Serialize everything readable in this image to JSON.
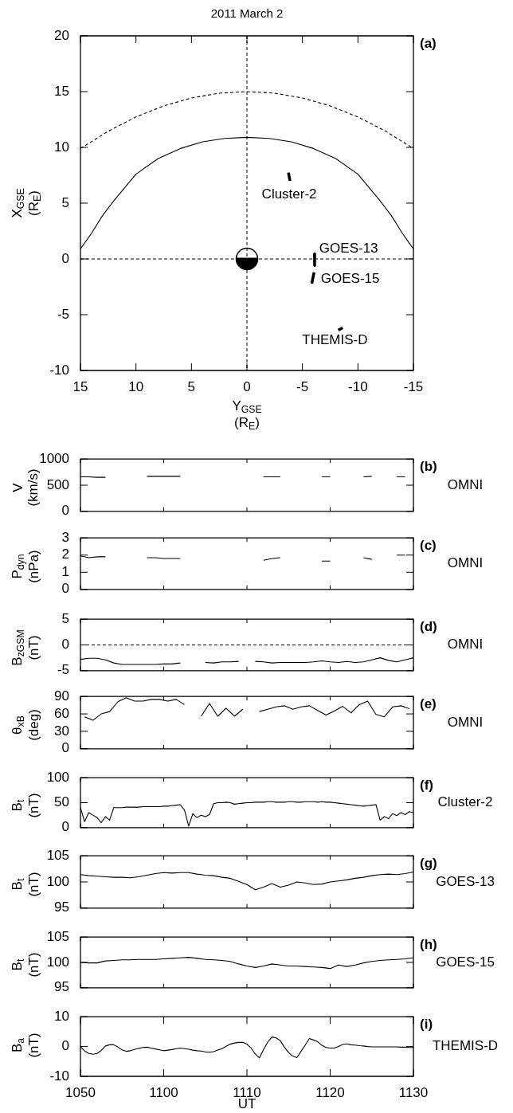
{
  "chart_data": [
    {
      "type": "line",
      "title": "2011 March 2",
      "xlabel": "Y$_{GSE}$\n(R$_{E}$)",
      "ylabel": "X$_{GSE}$\n(R$_{E}$)",
      "xlim": [
        15,
        -15
      ],
      "ylim": [
        -10,
        20
      ],
      "xticks": [
        15,
        10,
        5,
        0,
        -5,
        -10,
        -15
      ],
      "yticks": [
        -10,
        -5,
        0,
        5,
        10,
        15,
        20
      ],
      "ref_lines": [
        {
          "axis": "x",
          "value": 0,
          "line_style": "dashed"
        },
        {
          "axis": "y",
          "value": 0,
          "line_style": "dashed"
        }
      ],
      "annotations": [
        "(a)"
      ],
      "series": [
        {
          "color": "#000000",
          "line_style": "dashed",
          "x": [
            15,
            12.5,
            10,
            7.5,
            5,
            2.5,
            0,
            -2.5,
            -5,
            -7.5,
            -10,
            -12.5,
            -15
          ],
          "values": [
            9.9,
            11.45,
            12.73,
            13.72,
            14.43,
            14.86,
            15,
            14.86,
            14.43,
            13.72,
            12.73,
            11.45,
            9.9
          ]
        },
        {
          "color": "#000000",
          "x": [
            15,
            14,
            13,
            12,
            10,
            8,
            6,
            4,
            2,
            0,
            -2,
            -4,
            -6,
            -8,
            -10,
            -12,
            -13,
            -14,
            -15
          ],
          "values": [
            0.9,
            2.3,
            3.9,
            5.2,
            7.6,
            9.0,
            9.9,
            10.5,
            10.8,
            10.9,
            10.8,
            10.5,
            9.9,
            9.0,
            7.6,
            5.2,
            3.9,
            2.3,
            0.9
          ]
        },
        {
          "name": "Cluster-2",
          "color": "#000000",
          "x": [
            -3.74,
            -3.88
          ],
          "values": [
            7.74,
            7.0
          ]
        },
        {
          "name": "GOES-13",
          "color": "#000000",
          "x": [
            -6.08,
            -6.1
          ],
          "values": [
            0.47,
            -0.59
          ]
        },
        {
          "name": "GOES-15",
          "color": "#000000",
          "x": [
            -6.05,
            -5.84
          ],
          "values": [
            -1.2,
            -2.2
          ]
        },
        {
          "name": "THEMIS-D",
          "color": "#000000",
          "x": [
            -8.23,
            -8.62
          ],
          "values": [
            -6.38,
            -6.18
          ]
        }
      ]
    },
    {
      "type": "line",
      "ylabel": "V\n(km/s)",
      "tick_labels": "y",
      "xlim": [
        "2011-03-02T10:50",
        "2011-03-02T11:30"
      ],
      "ylim": [
        0,
        1000
      ],
      "yticks": [
        0,
        500,
        1000
      ],
      "xticks": [
        {
          "value": "2011-03-02T10:50",
          "label": null
        },
        {
          "value": "2011-03-02T11:00",
          "label": null
        },
        {
          "value": "2011-03-02T11:10",
          "label": null
        },
        {
          "value": "2011-03-02T11:20",
          "label": null
        },
        {
          "value": "2011-03-02T11:30",
          "label": null
        }
      ],
      "annotations": [
        "(b)",
        "OMNI"
      ],
      "color": "#000000",
      "x": [
        "2011-03-02T10:50",
        "2011-03-02T10:51",
        "2011-03-02T10:52",
        "2011-03-02T10:53",
        "2011-03-02T10:54",
        "2011-03-02T10:55",
        "2011-03-02T10:56",
        "2011-03-02T10:57",
        "2011-03-02T10:58",
        "2011-03-02T10:59",
        "2011-03-02T11:00",
        "2011-03-02T11:01",
        "2011-03-02T11:02",
        "2011-03-02T11:03",
        "2011-03-02T11:04",
        "2011-03-02T11:05",
        "2011-03-02T11:06",
        "2011-03-02T11:07",
        "2011-03-02T11:08",
        "2011-03-02T11:09",
        "2011-03-02T11:10",
        "2011-03-02T11:11",
        "2011-03-02T11:12",
        "2011-03-02T11:13",
        "2011-03-02T11:14",
        "2011-03-02T11:15",
        "2011-03-02T11:16",
        "2011-03-02T11:17",
        "2011-03-02T11:18",
        "2011-03-02T11:19",
        "2011-03-02T11:20",
        "2011-03-02T11:21",
        "2011-03-02T11:22",
        "2011-03-02T11:23",
        "2011-03-02T11:24",
        "2011-03-02T11:25",
        "2011-03-02T11:26",
        "2011-03-02T11:27",
        "2011-03-02T11:28",
        "2011-03-02T11:29"
      ],
      "values": [
        660,
        660,
        650,
        650,
        null,
        null,
        null,
        null,
        670,
        670,
        670,
        670,
        670,
        null,
        null,
        null,
        null,
        null,
        null,
        null,
        null,
        null,
        660,
        660,
        660,
        null,
        null,
        null,
        null,
        660,
        660,
        null,
        null,
        null,
        660,
        670,
        null,
        null,
        660,
        660
      ]
    },
    {
      "type": "line",
      "ylabel": "P$_{dyn}$\n(nPa)",
      "tick_labels": "y",
      "xlim": [
        "2011-03-02T10:50",
        "2011-03-02T11:30"
      ],
      "ylim": [
        0,
        3
      ],
      "yticks": [
        0,
        1,
        2,
        3
      ],
      "xticks": [
        {
          "value": "2011-03-02T10:50",
          "label": null
        },
        {
          "value": "2011-03-02T11:00",
          "label": null
        },
        {
          "value": "2011-03-02T11:10",
          "label": null
        },
        {
          "value": "2011-03-02T11:20",
          "label": null
        },
        {
          "value": "2011-03-02T11:30",
          "label": null
        }
      ],
      "annotations": [
        "(c)",
        "OMNI"
      ],
      "color": "#000000",
      "x": [
        "2011-03-02T10:50",
        "2011-03-02T10:51",
        "2011-03-02T10:52",
        "2011-03-02T10:53",
        "2011-03-02T10:54",
        "2011-03-02T10:55",
        "2011-03-02T10:56",
        "2011-03-02T10:57",
        "2011-03-02T10:58",
        "2011-03-02T10:59",
        "2011-03-02T11:00",
        "2011-03-02T11:01",
        "2011-03-02T11:02",
        "2011-03-02T11:03",
        "2011-03-02T11:04",
        "2011-03-02T11:05",
        "2011-03-02T11:06",
        "2011-03-02T11:07",
        "2011-03-02T11:08",
        "2011-03-02T11:09",
        "2011-03-02T11:10",
        "2011-03-02T11:11",
        "2011-03-02T11:12",
        "2011-03-02T11:13",
        "2011-03-02T11:14",
        "2011-03-02T11:15",
        "2011-03-02T11:16",
        "2011-03-02T11:17",
        "2011-03-02T11:18",
        "2011-03-02T11:19",
        "2011-03-02T11:20",
        "2011-03-02T11:21",
        "2011-03-02T11:22",
        "2011-03-02T11:23",
        "2011-03-02T11:24",
        "2011-03-02T11:25",
        "2011-03-02T11:26",
        "2011-03-02T11:27",
        "2011-03-02T11:28",
        "2011-03-02T11:29"
      ],
      "values": [
        1.95,
        1.85,
        1.9,
        1.9,
        null,
        null,
        null,
        null,
        1.85,
        1.85,
        1.8,
        1.8,
        1.8,
        null,
        null,
        null,
        null,
        null,
        null,
        null,
        null,
        null,
        1.7,
        1.8,
        1.85,
        null,
        null,
        null,
        null,
        1.65,
        1.65,
        null,
        null,
        null,
        1.85,
        1.75,
        null,
        null,
        2.0,
        2.0
      ]
    },
    {
      "type": "line",
      "ylabel": "B$_{zGSM}$\n(nT)",
      "tick_labels": "y",
      "xlim": [
        "2011-03-02T10:50",
        "2011-03-02T11:30"
      ],
      "ylim": [
        -5,
        5
      ],
      "yticks": [
        -5,
        0,
        5
      ],
      "xticks": [
        {
          "value": "2011-03-02T10:50",
          "label": null
        },
        {
          "value": "2011-03-02T11:00",
          "label": null
        },
        {
          "value": "2011-03-02T11:10",
          "label": null
        },
        {
          "value": "2011-03-02T11:20",
          "label": null
        },
        {
          "value": "2011-03-02T11:30",
          "label": null
        }
      ],
      "ref_lines": [
        {
          "axis": "y",
          "value": 0,
          "line_style": "dashed"
        }
      ],
      "annotations": [
        "(d)",
        "OMNI"
      ],
      "color": "#000000",
      "x": [
        "2011-03-02T10:50",
        "2011-03-02T10:51",
        "2011-03-02T10:52",
        "2011-03-02T10:53",
        "2011-03-02T10:54",
        "2011-03-02T10:55",
        "2011-03-02T10:56",
        "2011-03-02T10:57",
        "2011-03-02T10:58",
        "2011-03-02T10:59",
        "2011-03-02T11:00",
        "2011-03-02T11:01",
        "2011-03-02T11:02",
        "2011-03-02T11:03",
        "2011-03-02T11:04",
        "2011-03-02T11:05",
        "2011-03-02T11:06",
        "2011-03-02T11:07",
        "2011-03-02T11:08",
        "2011-03-02T11:09",
        "2011-03-02T11:10",
        "2011-03-02T11:11",
        "2011-03-02T11:12",
        "2011-03-02T11:13",
        "2011-03-02T11:14",
        "2011-03-02T11:15",
        "2011-03-02T11:16",
        "2011-03-02T11:17",
        "2011-03-02T11:18",
        "2011-03-02T11:19",
        "2011-03-02T11:20",
        "2011-03-02T11:21",
        "2011-03-02T11:22",
        "2011-03-02T11:23",
        "2011-03-02T11:24",
        "2011-03-02T11:25",
        "2011-03-02T11:26",
        "2011-03-02T11:27",
        "2011-03-02T11:28",
        "2011-03-02T11:29",
        "2011-03-02T11:30"
      ],
      "values": [
        -2.8,
        -2.6,
        -2.6,
        -2.9,
        -3.5,
        -3.8,
        -3.8,
        -3.8,
        -3.8,
        -3.8,
        -3.7,
        -3.7,
        -3.5,
        null,
        null,
        -3.4,
        -3.5,
        -3.3,
        -3.3,
        -3.2,
        null,
        -3.2,
        -3.3,
        -3.5,
        -3.4,
        -3.4,
        -3.4,
        -3.4,
        -3.3,
        -3.1,
        -3.3,
        -3.4,
        -3.2,
        -3.4,
        -3.3,
        -2.9,
        -2.5,
        -3.0,
        -3.3,
        -2.9,
        -2.5
      ]
    },
    {
      "type": "line",
      "ylabel": "θ$_{xB}$\n(deg)",
      "tick_labels": "y",
      "xlim": [
        "2011-03-02T10:50",
        "2011-03-02T11:30"
      ],
      "ylim": [
        0,
        90
      ],
      "yticks": [
        0,
        30,
        60,
        90
      ],
      "xticks": [
        {
          "value": "2011-03-02T10:50",
          "label": null
        },
        {
          "value": "2011-03-02T11:00",
          "label": null
        },
        {
          "value": "2011-03-02T11:10",
          "label": null
        },
        {
          "value": "2011-03-02T11:20",
          "label": null
        },
        {
          "value": "2011-03-02T11:30",
          "label": null
        }
      ],
      "annotations": [
        "(e)",
        "OMNI"
      ],
      "color": "#000000",
      "x": [
        "2011-03-02T10:50:30",
        "2011-03-02T10:51:30",
        "2011-03-02T10:52:30",
        "2011-03-02T10:53:30",
        "2011-03-02T10:54:30",
        "2011-03-02T10:55:30",
        "2011-03-02T10:56:30",
        "2011-03-02T10:57:30",
        "2011-03-02T10:58:30",
        "2011-03-02T10:59:30",
        "2011-03-02T11:00:30",
        "2011-03-02T11:01:30",
        "2011-03-02T11:02:30",
        "2011-03-02T11:03:30",
        "2011-03-02T11:04:30",
        "2011-03-02T11:05:30",
        "2011-03-02T11:06:30",
        "2011-03-02T11:07:30",
        "2011-03-02T11:08:30",
        "2011-03-02T11:09:30",
        "2011-03-02T11:10:30",
        "2011-03-02T11:11:30",
        "2011-03-02T11:12:30",
        "2011-03-02T11:13:30",
        "2011-03-02T11:14:30",
        "2011-03-02T11:15:30",
        "2011-03-02T11:16:30",
        "2011-03-02T11:17:30",
        "2011-03-02T11:18:30",
        "2011-03-02T11:19:30",
        "2011-03-02T11:20:30",
        "2011-03-02T11:21:30",
        "2011-03-02T11:22:30",
        "2011-03-02T11:23:30",
        "2011-03-02T11:24:30",
        "2011-03-02T11:25:30",
        "2011-03-02T11:26:30",
        "2011-03-02T11:27:30",
        "2011-03-02T11:28:30",
        "2011-03-02T11:29:30"
      ],
      "values": [
        55,
        49,
        60,
        64,
        81,
        88,
        82,
        82,
        85,
        85,
        82,
        85,
        76,
        null,
        56,
        78,
        56,
        70,
        56,
        68,
        null,
        64,
        68,
        72,
        74,
        68,
        72,
        74,
        66,
        58,
        65,
        73,
        62,
        76,
        82,
        59,
        55,
        72,
        74,
        69
      ]
    },
    {
      "type": "line",
      "ylabel": "B$_{t}$\n(nT)",
      "tick_labels": "y",
      "xlim": [
        "2011-03-02T10:50",
        "2011-03-02T11:30"
      ],
      "ylim": [
        0,
        100
      ],
      "yticks": [
        0,
        50,
        100
      ],
      "xticks": [
        {
          "value": "2011-03-02T10:50",
          "label": null
        },
        {
          "value": "2011-03-02T11:00",
          "label": null
        },
        {
          "value": "2011-03-02T11:10",
          "label": null
        },
        {
          "value": "2011-03-02T11:20",
          "label": null
        },
        {
          "value": "2011-03-02T11:30",
          "label": null
        }
      ],
      "annotations": [
        "(f)",
        "Cluster-2"
      ],
      "color": "#000000",
      "x": [
        "2011-03-02T10:50",
        "2011-03-02T10:50:30",
        "2011-03-02T10:51",
        "2011-03-02T10:51:30",
        "2011-03-02T10:52",
        "2011-03-02T10:52:30",
        "2011-03-02T10:53",
        "2011-03-02T10:53:30",
        "2011-03-02T10:54",
        "2011-03-02T10:54:30",
        "2011-03-02T10:55",
        "2011-03-02T10:55:30",
        "2011-03-02T10:56",
        "2011-03-02T10:56:30",
        "2011-03-02T10:57",
        "2011-03-02T10:57:30",
        "2011-03-02T10:58",
        "2011-03-02T10:58:30",
        "2011-03-02T10:59",
        "2011-03-02T10:59:30",
        "2011-03-02T11:00",
        "2011-03-02T11:00:30",
        "2011-03-02T11:01",
        "2011-03-02T11:01:30",
        "2011-03-02T11:02",
        "2011-03-02T11:02:30",
        "2011-03-02T11:03",
        "2011-03-02T11:03:30",
        "2011-03-02T11:04",
        "2011-03-02T11:04:30",
        "2011-03-02T11:05",
        "2011-03-02T11:05:30",
        "2011-03-02T11:06",
        "2011-03-02T11:06:30",
        "2011-03-02T11:07",
        "2011-03-02T11:07:30",
        "2011-03-02T11:08",
        "2011-03-02T11:08:30",
        "2011-03-02T11:09",
        "2011-03-02T11:09:30",
        "2011-03-02T11:10",
        "2011-03-02T11:10:30",
        "2011-03-02T11:11",
        "2011-03-02T11:11:30",
        "2011-03-02T11:12",
        "2011-03-02T11:12:30",
        "2011-03-02T11:13",
        "2011-03-02T11:13:30",
        "2011-03-02T11:14",
        "2011-03-02T11:14:30",
        "2011-03-02T11:15",
        "2011-03-02T11:15:30",
        "2011-03-02T11:16",
        "2011-03-02T11:16:30",
        "2011-03-02T11:17",
        "2011-03-02T11:17:30",
        "2011-03-02T11:18",
        "2011-03-02T11:18:30",
        "2011-03-02T11:19",
        "2011-03-02T11:19:30",
        "2011-03-02T11:20",
        "2011-03-02T11:20:30",
        "2011-03-02T11:21",
        "2011-03-02T11:21:30",
        "2011-03-02T11:22",
        "2011-03-02T11:22:30",
        "2011-03-02T11:23",
        "2011-03-02T11:23:30",
        "2011-03-02T11:24",
        "2011-03-02T11:24:30",
        "2011-03-02T11:25",
        "2011-03-02T11:25:30",
        "2011-03-02T11:26",
        "2011-03-02T11:26:30",
        "2011-03-02T11:27",
        "2011-03-02T11:27:30",
        "2011-03-02T11:28",
        "2011-03-02T11:28:30",
        "2011-03-02T11:29",
        "2011-03-02T11:29:30",
        "2011-03-02T11:30"
      ],
      "values": [
        40,
        12,
        30,
        25,
        20,
        10,
        22,
        15,
        40,
        40,
        40,
        41,
        41,
        41,
        41,
        42,
        42,
        42,
        42,
        42,
        43,
        43,
        44,
        45,
        46,
        35,
        3,
        28,
        20,
        25,
        22,
        26,
        48,
        50,
        50,
        51,
        50,
        47,
        48,
        49,
        50,
        50,
        51,
        51,
        51,
        52,
        52,
        51,
        51,
        51,
        52,
        52,
        51,
        51,
        52,
        52,
        52,
        51,
        52,
        51,
        51,
        50,
        49,
        48,
        47,
        46,
        45,
        44,
        43,
        44,
        45,
        46,
        15,
        22,
        18,
        28,
        24,
        30,
        26,
        32,
        30
      ]
    },
    {
      "type": "line",
      "ylabel": "B$_{t}$\n(nT)",
      "tick_labels": "y",
      "xlim": [
        "2011-03-02T10:50",
        "2011-03-02T11:30"
      ],
      "ylim": [
        95,
        105
      ],
      "yticks": [
        95,
        100,
        105
      ],
      "xticks": [
        {
          "value": "2011-03-02T10:50",
          "label": null
        },
        {
          "value": "2011-03-02T11:00",
          "label": null
        },
        {
          "value": "2011-03-02T11:10",
          "label": null
        },
        {
          "value": "2011-03-02T11:20",
          "label": null
        },
        {
          "value": "2011-03-02T11:30",
          "label": null
        }
      ],
      "annotations": [
        "(g)",
        "GOES-13"
      ],
      "color": "#000000",
      "x": [
        "2011-03-02T10:50",
        "2011-03-02T10:51",
        "2011-03-02T10:52",
        "2011-03-02T10:53",
        "2011-03-02T10:54",
        "2011-03-02T10:55",
        "2011-03-02T10:56",
        "2011-03-02T10:57",
        "2011-03-02T10:58",
        "2011-03-02T10:59",
        "2011-03-02T11:00",
        "2011-03-02T11:01",
        "2011-03-02T11:02",
        "2011-03-02T11:03",
        "2011-03-02T11:04",
        "2011-03-02T11:05",
        "2011-03-02T11:06",
        "2011-03-02T11:07",
        "2011-03-02T11:08",
        "2011-03-02T11:09",
        "2011-03-02T11:10",
        "2011-03-02T11:11",
        "2011-03-02T11:12",
        "2011-03-02T11:13",
        "2011-03-02T11:14",
        "2011-03-02T11:15",
        "2011-03-02T11:16",
        "2011-03-02T11:17",
        "2011-03-02T11:18",
        "2011-03-02T11:19",
        "2011-03-02T11:20",
        "2011-03-02T11:21",
        "2011-03-02T11:22",
        "2011-03-02T11:23",
        "2011-03-02T11:24",
        "2011-03-02T11:25",
        "2011-03-02T11:26",
        "2011-03-02T11:27",
        "2011-03-02T11:28",
        "2011-03-02T11:29",
        "2011-03-02T11:30"
      ],
      "values": [
        101.4,
        101.2,
        101.1,
        101.0,
        100.9,
        100.9,
        100.8,
        101.0,
        101.3,
        101.6,
        101.8,
        101.7,
        101.8,
        101.8,
        101.5,
        101.3,
        101.2,
        100.9,
        100.7,
        100.1,
        99.5,
        98.5,
        99.0,
        99.7,
        99.0,
        99.4,
        100.0,
        99.8,
        99.5,
        99.6,
        100.0,
        100.2,
        100.4,
        100.7,
        100.9,
        101.2,
        101.4,
        101.5,
        101.4,
        101.6,
        101.9
      ]
    },
    {
      "type": "line",
      "ylabel": "B$_{t}$\n(nT)",
      "tick_labels": "y",
      "xlim": [
        "2011-03-02T10:50",
        "2011-03-02T11:30"
      ],
      "ylim": [
        95,
        105
      ],
      "yticks": [
        95,
        100,
        105
      ],
      "xticks": [
        {
          "value": "2011-03-02T10:50",
          "label": null
        },
        {
          "value": "2011-03-02T11:00",
          "label": null
        },
        {
          "value": "2011-03-02T11:10",
          "label": null
        },
        {
          "value": "2011-03-02T11:20",
          "label": null
        },
        {
          "value": "2011-03-02T11:30",
          "label": null
        }
      ],
      "annotations": [
        "(h)",
        "GOES-15"
      ],
      "color": "#000000",
      "x": [
        "2011-03-02T10:50",
        "2011-03-02T10:51",
        "2011-03-02T10:52",
        "2011-03-02T10:53",
        "2011-03-02T10:54",
        "2011-03-02T10:55",
        "2011-03-02T10:56",
        "2011-03-02T10:57",
        "2011-03-02T10:58",
        "2011-03-02T10:59",
        "2011-03-02T11:00",
        "2011-03-02T11:01",
        "2011-03-02T11:02",
        "2011-03-02T11:03",
        "2011-03-02T11:04",
        "2011-03-02T11:05",
        "2011-03-02T11:06",
        "2011-03-02T11:07",
        "2011-03-02T11:08",
        "2011-03-02T11:09",
        "2011-03-02T11:10",
        "2011-03-02T11:11",
        "2011-03-02T11:12",
        "2011-03-02T11:13",
        "2011-03-02T11:14",
        "2011-03-02T11:15",
        "2011-03-02T11:16",
        "2011-03-02T11:17",
        "2011-03-02T11:18",
        "2011-03-02T11:19",
        "2011-03-02T11:20",
        "2011-03-02T11:21",
        "2011-03-02T11:22",
        "2011-03-02T11:23",
        "2011-03-02T11:24",
        "2011-03-02T11:25",
        "2011-03-02T11:26",
        "2011-03-02T11:27",
        "2011-03-02T11:28",
        "2011-03-02T11:29",
        "2011-03-02T11:30"
      ],
      "values": [
        100.0,
        99.9,
        99.9,
        100.3,
        100.4,
        100.5,
        100.5,
        100.6,
        100.6,
        100.6,
        100.7,
        100.8,
        100.9,
        101.0,
        100.8,
        100.6,
        100.5,
        100.4,
        100.2,
        99.7,
        99.3,
        99.0,
        99.3,
        99.7,
        99.5,
        99.3,
        99.3,
        99.2,
        99.1,
        99.0,
        98.8,
        99.5,
        99.2,
        99.5,
        99.9,
        100.2,
        100.4,
        100.5,
        100.6,
        100.7,
        100.9
      ]
    },
    {
      "type": "line",
      "ylabel": "B$_{a}$\n(nT)",
      "xlabel": "UT",
      "xlim": [
        "2011-03-02T10:50",
        "2011-03-02T11:30"
      ],
      "ylim": [
        -10,
        10
      ],
      "yticks": [
        -10,
        0,
        10
      ],
      "xticks": [
        {
          "value": "2011-03-02T10:50",
          "label": "1050"
        },
        {
          "value": "2011-03-02T11:00",
          "label": "1100"
        },
        {
          "value": "2011-03-02T11:10",
          "label": "1110"
        },
        {
          "value": "2011-03-02T11:20",
          "label": "1120"
        },
        {
          "value": "2011-03-02T11:30",
          "label": "1130"
        }
      ],
      "annotations": [
        "(i)",
        "THEMIS-D"
      ],
      "color": "#000000",
      "x": [
        "2011-03-02T10:50",
        "2011-03-02T10:50:30",
        "2011-03-02T10:51",
        "2011-03-02T10:51:30",
        "2011-03-02T10:52",
        "2011-03-02T10:52:30",
        "2011-03-02T10:53",
        "2011-03-02T10:53:30",
        "2011-03-02T10:54",
        "2011-03-02T10:54:30",
        "2011-03-02T10:55",
        "2011-03-02T10:55:30",
        "2011-03-02T10:56",
        "2011-03-02T10:56:30",
        "2011-03-02T10:57",
        "2011-03-02T10:57:30",
        "2011-03-02T10:58",
        "2011-03-02T10:58:30",
        "2011-03-02T10:59",
        "2011-03-02T10:59:30",
        "2011-03-02T11:00",
        "2011-03-02T11:00:30",
        "2011-03-02T11:01",
        "2011-03-02T11:01:30",
        "2011-03-02T11:02",
        "2011-03-02T11:02:30",
        "2011-03-02T11:03",
        "2011-03-02T11:03:30",
        "2011-03-02T11:04",
        "2011-03-02T11:04:30",
        "2011-03-02T11:05",
        "2011-03-02T11:05:30",
        "2011-03-02T11:06",
        "2011-03-02T11:06:30",
        "2011-03-02T11:07",
        "2011-03-02T11:07:30",
        "2011-03-02T11:08",
        "2011-03-02T11:08:30",
        "2011-03-02T11:09",
        "2011-03-02T11:09:30",
        "2011-03-02T11:10",
        "2011-03-02T11:10:30",
        "2011-03-02T11:11",
        "2011-03-02T11:11:30",
        "2011-03-02T11:12",
        "2011-03-02T11:12:30",
        "2011-03-02T11:13",
        "2011-03-02T11:13:30",
        "2011-03-02T11:14",
        "2011-03-02T11:14:30",
        "2011-03-02T11:15",
        "2011-03-02T11:15:30",
        "2011-03-02T11:16",
        "2011-03-02T11:16:30",
        "2011-03-02T11:17",
        "2011-03-02T11:17:30",
        "2011-03-02T11:18",
        "2011-03-02T11:18:30",
        "2011-03-02T11:19",
        "2011-03-02T11:19:30",
        "2011-03-02T11:20",
        "2011-03-02T11:20:30",
        "2011-03-02T11:21",
        "2011-03-02T11:21:30",
        "2011-03-02T11:22",
        "2011-03-02T11:22:30",
        "2011-03-02T11:23",
        "2011-03-02T11:23:30",
        "2011-03-02T11:24",
        "2011-03-02T11:24:30",
        "2011-03-02T11:25",
        "2011-03-02T11:25:30",
        "2011-03-02T11:26",
        "2011-03-02T11:26:30",
        "2011-03-02T11:27",
        "2011-03-02T11:27:30",
        "2011-03-02T11:28",
        "2011-03-02T11:28:30",
        "2011-03-02T11:29",
        "2011-03-02T11:29:30",
        "2011-03-02T11:30"
      ],
      "values": [
        0,
        -1.5,
        -2.3,
        -2.6,
        -2.3,
        -1.3,
        0.2,
        0.6,
        0.6,
        -0.2,
        -1.1,
        -1.6,
        -1.4,
        -1.0,
        -0.6,
        -0.3,
        -0.2,
        -0.5,
        -0.8,
        -1.1,
        -1.4,
        -1.2,
        -1.0,
        -0.7,
        -0.5,
        -0.7,
        -0.9,
        -1.2,
        -1.4,
        -1.5,
        -1.8,
        -1.9,
        -1.7,
        -1.2,
        -0.7,
        0.1,
        0.8,
        1.2,
        1.4,
        1.4,
        0.8,
        -0.5,
        -2.5,
        -3.8,
        -1.0,
        1.5,
        3.2,
        2.9,
        2.0,
        -0.2,
        -2.0,
        -3.2,
        -3.7,
        -1.6,
        0.5,
        2.7,
        2.2,
        1.6,
        0.4,
        -0.3,
        -0.5,
        -0.5,
        0.0,
        0.7,
        0.9,
        0.6,
        0.5,
        0.3,
        0.2,
        0.0,
        -0.1,
        -0.1,
        -0.1,
        -0.1,
        -0.1,
        -0.1,
        -0.1,
        -0.2,
        -0.2,
        -0.3,
        -0.3
      ]
    }
  ]
}
